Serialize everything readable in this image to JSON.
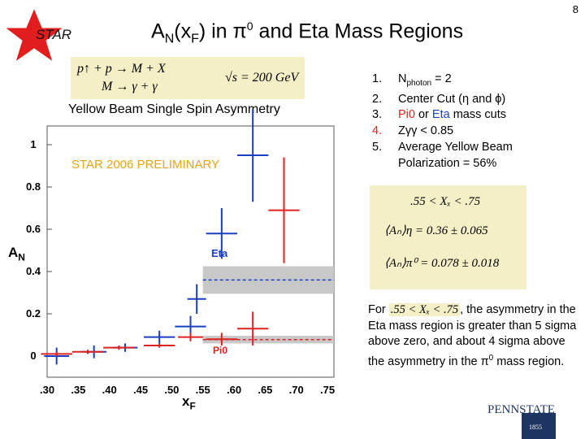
{
  "slide_number": "8",
  "logo": {
    "text": "STAR"
  },
  "title": {
    "prefix": "A",
    "sub": "N",
    "mid": "(x",
    "sub2": "F",
    "suffix_a": ") in π",
    "sup": "0",
    "suffix_b": " and Eta Mass Regions"
  },
  "formula": {
    "line1": "p↑ + p → M + X",
    "line2": "M → γ + γ",
    "sqrt": "√s = 200 GeV"
  },
  "chart_title": "Yellow Beam Single Spin Asymmetry",
  "prelim_label": "STAR 2006 PRELIMINARY",
  "eta_label": "Eta",
  "pi0_label": "Pi0",
  "axis": {
    "ylabel": "A",
    "ylabel_sub": "N",
    "xlabel": "x",
    "xlabel_sub": "F"
  },
  "cuts": [
    {
      "num": "1.",
      "text": "N",
      "sub": "photon",
      "rest": " = 2"
    },
    {
      "num": "2.",
      "text": "Center Cut (η  and ϕ)"
    },
    {
      "num": "3.",
      "text_a": " Pi0",
      "text_b": " or ",
      "text_c": "Eta",
      "text_d": " mass cuts"
    },
    {
      "num": "4.",
      "text": "Zγγ  < 0.85"
    },
    {
      "num": "5.",
      "text": "Average Yellow Beam Polarization = 56%"
    }
  ],
  "results": {
    "range": ".55 < Xₓ < .75",
    "eta": "⟨Aₙ⟩η = 0.36 ± 0.065",
    "pi0": "⟨Aₙ⟩π⁰ = 0.078 ± 0.018"
  },
  "conclusion": {
    "pre": "For ",
    "range": ".55 < Xₓ < .75",
    "post": ", the asymmetry in the Eta mass region is greater than 5 sigma above zero, and about 4 sigma above the asymmetry in the π",
    "sup": "0",
    "end": " mass region."
  },
  "psu_logo": {
    "text": "PENNSTATE",
    "year": "1855"
  },
  "chart_data": {
    "type": "scatter",
    "title": "Yellow Beam Single Spin Asymmetry",
    "xlabel": "xF",
    "ylabel": "AN",
    "xlim": [
      0.3,
      0.75
    ],
    "ylim": [
      -0.05,
      1.1
    ],
    "xticks": [
      ".30",
      ".35",
      ".40",
      ".45",
      ".50",
      ".55",
      ".60",
      ".65",
      ".70",
      ".75"
    ],
    "yticks": [
      "0",
      "0.2",
      "0.4",
      "0.6",
      "0.8",
      "1"
    ],
    "series": [
      {
        "name": "Eta",
        "color": "#1b3fbf",
        "points": [
          {
            "x": 0.31,
            "xerr": 0.02,
            "y": 0.0,
            "yerr": 0.04
          },
          {
            "x": 0.37,
            "xerr": 0.02,
            "y": 0.02,
            "yerr": 0.03
          },
          {
            "x": 0.42,
            "xerr": 0.02,
            "y": 0.04,
            "yerr": 0.02
          },
          {
            "x": 0.475,
            "xerr": 0.025,
            "y": 0.09,
            "yerr": 0.03
          },
          {
            "x": 0.525,
            "xerr": 0.025,
            "y": 0.14,
            "yerr": 0.05
          },
          {
            "x": 0.535,
            "xerr": 0.015,
            "y": 0.27,
            "yerr": 0.07
          },
          {
            "x": 0.575,
            "xerr": 0.025,
            "y": 0.58,
            "yerr": 0.12
          },
          {
            "x": 0.625,
            "xerr": 0.025,
            "y": 0.95,
            "yerr": 0.22
          }
        ]
      },
      {
        "name": "Pi0",
        "color": "#d22",
        "points": [
          {
            "x": 0.31,
            "xerr": 0.025,
            "y": 0.01,
            "yerr": 0.01
          },
          {
            "x": 0.36,
            "xerr": 0.025,
            "y": 0.02,
            "yerr": 0.01
          },
          {
            "x": 0.41,
            "xerr": 0.025,
            "y": 0.04,
            "yerr": 0.01
          },
          {
            "x": 0.475,
            "xerr": 0.025,
            "y": 0.05,
            "yerr": 0.01
          },
          {
            "x": 0.525,
            "xerr": 0.02,
            "y": 0.09,
            "yerr": 0.02
          },
          {
            "x": 0.575,
            "xerr": 0.025,
            "y": 0.08,
            "yerr": 0.03
          },
          {
            "x": 0.625,
            "xerr": 0.025,
            "y": 0.13,
            "yerr": 0.08
          },
          {
            "x": 0.675,
            "xerr": 0.025,
            "y": 0.69,
            "yerr": 0.25
          }
        ]
      }
    ],
    "bands": [
      {
        "name": "Eta average",
        "color": "#1b3fbf",
        "y": 0.36,
        "err": 0.065,
        "x": [
          0.55,
          0.75
        ]
      },
      {
        "name": "Pi0 average",
        "color": "#d22",
        "y": 0.078,
        "err": 0.018,
        "x": [
          0.55,
          0.75
        ]
      }
    ]
  }
}
